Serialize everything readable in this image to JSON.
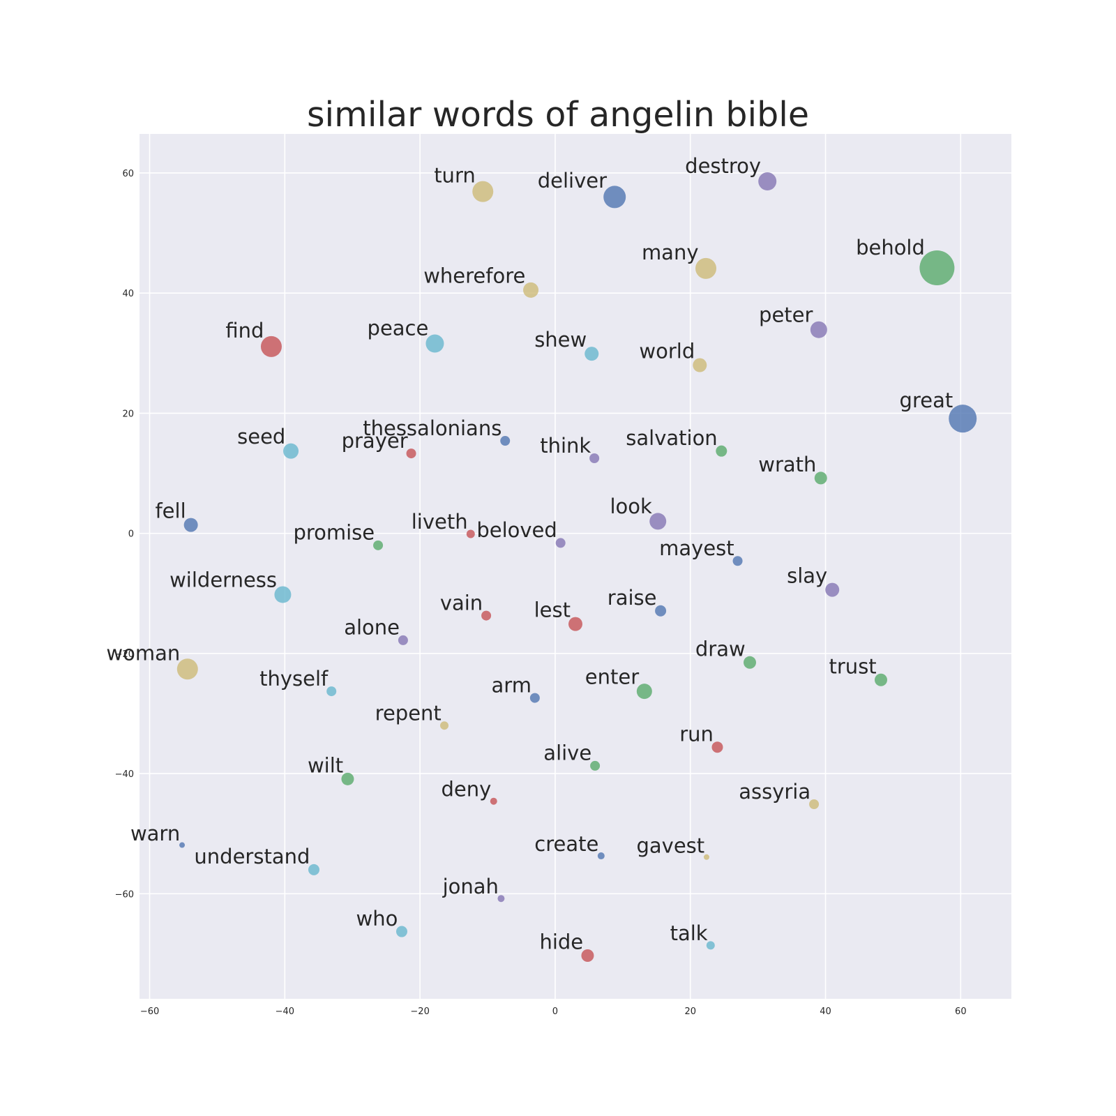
{
  "chart_data": {
    "type": "scatter",
    "title": "similar words of angelin bible",
    "xlabel": "",
    "ylabel": "",
    "xlim": [
      -61.5,
      67.5
    ],
    "ylim": [
      -77.5,
      66.5
    ],
    "xticks": [
      -60,
      -40,
      -20,
      0,
      20,
      40,
      60
    ],
    "yticks": [
      60,
      40,
      20,
      0,
      -20,
      -40,
      -60
    ],
    "grid": true,
    "points": [
      {
        "word": "turn",
        "x": -10.7,
        "y": 56.9,
        "color": "#ccb974",
        "size": 15
      },
      {
        "word": "deliver",
        "x": 8.8,
        "y": 56.0,
        "color": "#4c72b0",
        "size": 16
      },
      {
        "word": "destroy",
        "x": 31.4,
        "y": 58.6,
        "color": "#8172b2",
        "size": 13
      },
      {
        "word": "many",
        "x": 22.3,
        "y": 44.1,
        "color": "#ccb974",
        "size": 15
      },
      {
        "word": "behold",
        "x": 56.5,
        "y": 44.2,
        "color": "#55a868",
        "size": 25
      },
      {
        "word": "wherefore",
        "x": -3.6,
        "y": 40.5,
        "color": "#ccb974",
        "size": 11
      },
      {
        "word": "peter",
        "x": 39.0,
        "y": 33.9,
        "color": "#8172b2",
        "size": 12
      },
      {
        "word": "find",
        "x": -42.0,
        "y": 31.1,
        "color": "#c44e52",
        "size": 15
      },
      {
        "word": "peace",
        "x": -17.8,
        "y": 31.6,
        "color": "#64b5cd",
        "size": 13
      },
      {
        "word": "shew",
        "x": 5.4,
        "y": 29.9,
        "color": "#64b5cd",
        "size": 10
      },
      {
        "word": "world",
        "x": 21.4,
        "y": 28.0,
        "color": "#ccb974",
        "size": 10
      },
      {
        "word": "great",
        "x": 60.3,
        "y": 19.1,
        "color": "#4c72b0",
        "size": 20
      },
      {
        "word": "thessalonians",
        "x": -7.4,
        "y": 15.4,
        "color": "#4c72b0",
        "size": 7
      },
      {
        "word": "seed",
        "x": -39.1,
        "y": 13.7,
        "color": "#64b5cd",
        "size": 11
      },
      {
        "word": "prayer",
        "x": -21.3,
        "y": 13.3,
        "color": "#c44e52",
        "size": 7
      },
      {
        "word": "think",
        "x": 5.8,
        "y": 12.5,
        "color": "#8172b2",
        "size": 7
      },
      {
        "word": "salvation",
        "x": 24.6,
        "y": 13.7,
        "color": "#55a868",
        "size": 8
      },
      {
        "word": "wrath",
        "x": 39.3,
        "y": 9.2,
        "color": "#55a868",
        "size": 9
      },
      {
        "word": "fell",
        "x": -53.9,
        "y": 1.4,
        "color": "#4c72b0",
        "size": 10
      },
      {
        "word": "look",
        "x": 15.2,
        "y": 2.0,
        "color": "#8172b2",
        "size": 12
      },
      {
        "word": "liveth",
        "x": -12.5,
        "y": -0.1,
        "color": "#c44e52",
        "size": 6
      },
      {
        "word": "promise",
        "x": -26.2,
        "y": -2.0,
        "color": "#55a868",
        "size": 7
      },
      {
        "word": "beloved",
        "x": 0.8,
        "y": -1.6,
        "color": "#8172b2",
        "size": 7
      },
      {
        "word": "mayest",
        "x": 27.0,
        "y": -4.6,
        "color": "#4c72b0",
        "size": 7
      },
      {
        "word": "wilderness",
        "x": -40.3,
        "y": -10.2,
        "color": "#64b5cd",
        "size": 12
      },
      {
        "word": "slay",
        "x": 41.0,
        "y": -9.4,
        "color": "#8172b2",
        "size": 10
      },
      {
        "word": "vain",
        "x": -10.2,
        "y": -13.7,
        "color": "#c44e52",
        "size": 7
      },
      {
        "word": "raise",
        "x": 15.6,
        "y": -12.9,
        "color": "#4c72b0",
        "size": 8
      },
      {
        "word": "lest",
        "x": 3.0,
        "y": -15.1,
        "color": "#c44e52",
        "size": 10
      },
      {
        "word": "alone",
        "x": -22.5,
        "y": -17.8,
        "color": "#8172b2",
        "size": 7
      },
      {
        "word": "woman",
        "x": -54.4,
        "y": -22.6,
        "color": "#ccb974",
        "size": 15
      },
      {
        "word": "draw",
        "x": 28.8,
        "y": -21.5,
        "color": "#55a868",
        "size": 9
      },
      {
        "word": "trust",
        "x": 48.2,
        "y": -24.4,
        "color": "#55a868",
        "size": 9
      },
      {
        "word": "thyself",
        "x": -33.1,
        "y": -26.3,
        "color": "#64b5cd",
        "size": 7
      },
      {
        "word": "arm",
        "x": -3.0,
        "y": -27.4,
        "color": "#4c72b0",
        "size": 7
      },
      {
        "word": "enter",
        "x": 13.2,
        "y": -26.3,
        "color": "#55a868",
        "size": 11
      },
      {
        "word": "repent",
        "x": -16.4,
        "y": -32.0,
        "color": "#ccb974",
        "size": 6
      },
      {
        "word": "run",
        "x": 24.0,
        "y": -35.6,
        "color": "#c44e52",
        "size": 8
      },
      {
        "word": "alive",
        "x": 5.9,
        "y": -38.7,
        "color": "#55a868",
        "size": 7
      },
      {
        "word": "wilt",
        "x": -30.7,
        "y": -40.9,
        "color": "#55a868",
        "size": 9
      },
      {
        "word": "deny",
        "x": -9.1,
        "y": -44.6,
        "color": "#c44e52",
        "size": 5
      },
      {
        "word": "assyria",
        "x": 38.3,
        "y": -45.1,
        "color": "#ccb974",
        "size": 7
      },
      {
        "word": "warn",
        "x": -55.2,
        "y": -51.9,
        "color": "#4c72b0",
        "size": 4
      },
      {
        "word": "understand",
        "x": -35.7,
        "y": -56.0,
        "color": "#64b5cd",
        "size": 8
      },
      {
        "word": "create",
        "x": 6.8,
        "y": -53.7,
        "color": "#4c72b0",
        "size": 5
      },
      {
        "word": "gavest",
        "x": 22.4,
        "y": -53.9,
        "color": "#ccb974",
        "size": 4
      },
      {
        "word": "jonah",
        "x": -8.0,
        "y": -60.8,
        "color": "#8172b2",
        "size": 5
      },
      {
        "word": "who",
        "x": -22.7,
        "y": -66.3,
        "color": "#64b5cd",
        "size": 8
      },
      {
        "word": "talk",
        "x": 23.0,
        "y": -68.6,
        "color": "#64b5cd",
        "size": 6
      },
      {
        "word": "hide",
        "x": 4.8,
        "y": -70.3,
        "color": "#c44e52",
        "size": 9
      }
    ]
  },
  "colors": {
    "plot_background": "#eaeaf2",
    "grid": "#ffffff",
    "text": "#262626"
  }
}
